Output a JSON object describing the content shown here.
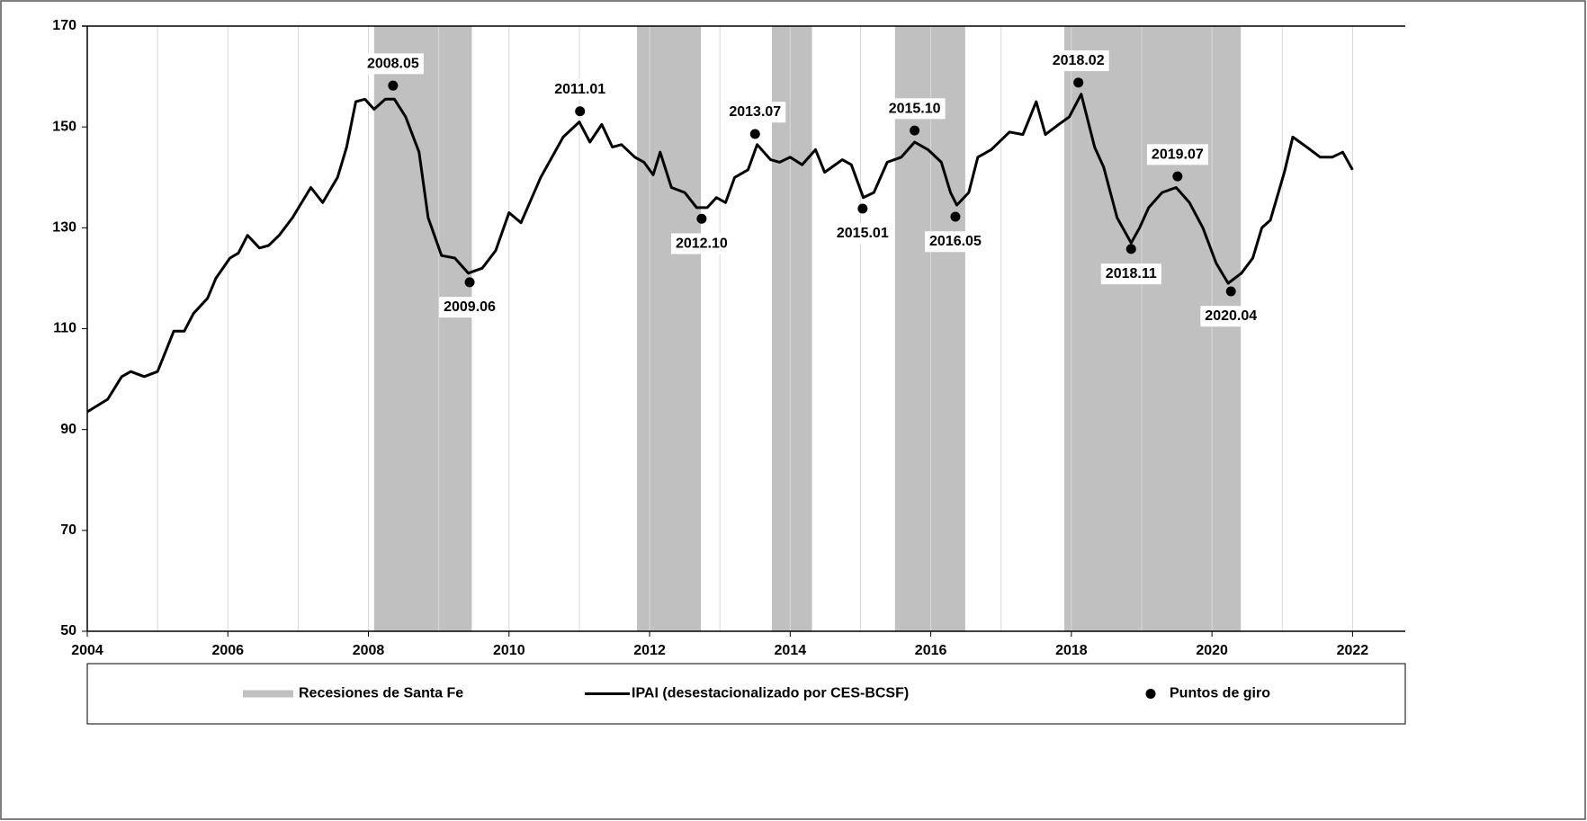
{
  "chart_data": {
    "type": "line",
    "xlim": [
      2004,
      2022.75
    ],
    "ylim": [
      50,
      170
    ],
    "xticks": [
      2004,
      2006,
      2008,
      2010,
      2012,
      2014,
      2016,
      2018,
      2020,
      2022
    ],
    "minor_xticks": [
      2005,
      2007,
      2009,
      2011,
      2013,
      2015,
      2017,
      2019,
      2021
    ],
    "yticks": [
      50,
      70,
      90,
      110,
      130,
      150,
      170
    ],
    "grid": true,
    "legend": "bottom",
    "recessions": {
      "name": "Recesiones de Santa Fe",
      "color": "#c0c0c0",
      "ranges": [
        [
          2008.08,
          2009.47
        ],
        [
          2011.82,
          2012.73
        ],
        [
          2013.74,
          2014.31
        ],
        [
          2015.49,
          2016.49
        ],
        [
          2017.9,
          2020.41
        ]
      ]
    },
    "series": [
      {
        "name": "IPAI (desestacionalizado por CES-BCSF)",
        "color": "#000000",
        "x": [
          2004.0,
          2004.29,
          2004.49,
          2004.62,
          2004.81,
          2005.0,
          2005.13,
          2005.23,
          2005.38,
          2005.51,
          2005.71,
          2005.83,
          2006.03,
          2006.15,
          2006.28,
          2006.45,
          2006.58,
          2006.73,
          2006.92,
          2007.18,
          2007.35,
          2007.56,
          2007.69,
          2007.82,
          2007.95,
          2008.08,
          2008.24,
          2008.37,
          2008.53,
          2008.72,
          2008.85,
          2009.04,
          2009.23,
          2009.42,
          2009.62,
          2009.81,
          2010.0,
          2010.17,
          2010.45,
          2010.77,
          2011.0,
          2011.15,
          2011.32,
          2011.47,
          2011.6,
          2011.79,
          2011.92,
          2012.05,
          2012.15,
          2012.31,
          2012.5,
          2012.67,
          2012.82,
          2012.95,
          2013.08,
          2013.21,
          2013.4,
          2013.53,
          2013.72,
          2013.85,
          2014.0,
          2014.17,
          2014.36,
          2014.49,
          2014.74,
          2014.87,
          2015.04,
          2015.19,
          2015.38,
          2015.58,
          2015.77,
          2015.96,
          2016.15,
          2016.28,
          2016.37,
          2016.54,
          2016.67,
          2016.86,
          2017.12,
          2017.31,
          2017.5,
          2017.63,
          2017.82,
          2017.97,
          2018.14,
          2018.33,
          2018.46,
          2018.65,
          2018.85,
          2018.97,
          2019.1,
          2019.29,
          2019.49,
          2019.68,
          2019.87,
          2020.06,
          2020.23,
          2020.42,
          2020.58,
          2020.71,
          2020.83,
          2021.03,
          2021.15,
          2021.35,
          2021.54,
          2021.71,
          2021.86,
          2022.0
        ],
        "values": [
          93.5,
          96,
          100.5,
          101.5,
          100.5,
          101.5,
          106,
          109.5,
          109.5,
          113,
          116,
          120,
          124,
          125,
          128.5,
          126,
          126.5,
          128.5,
          132,
          138,
          135,
          140,
          146,
          155,
          155.5,
          153.5,
          155.5,
          155.5,
          152,
          145,
          132,
          124.5,
          124,
          121,
          122,
          125.5,
          133,
          131,
          140,
          148,
          151,
          147,
          150.5,
          146,
          146.5,
          144,
          143,
          140.5,
          145,
          138,
          137,
          134,
          134,
          136,
          135,
          140,
          141.5,
          146.5,
          143.5,
          143,
          144,
          142.5,
          145.5,
          141,
          143.5,
          142.5,
          136,
          137,
          143,
          144,
          147,
          145.5,
          143,
          137,
          134.5,
          137,
          144,
          145.5,
          149,
          148.5,
          155,
          148.5,
          150.5,
          152,
          156.5,
          146,
          142,
          132,
          127,
          130,
          134,
          137,
          138,
          135,
          130,
          123,
          119,
          121,
          124,
          130,
          131.5,
          141,
          148,
          146,
          144,
          144,
          145,
          141.5
        ]
      }
    ],
    "turning_points": {
      "name": "Puntos de giro",
      "color": "#000000",
      "labels": [
        "2008.05",
        "2009.06",
        "2011.01",
        "2012.10",
        "2013.07",
        "2015.01",
        "2015.10",
        "2016.05",
        "2018.02",
        "2018.11",
        "2019.07",
        "2020.04"
      ],
      "x": [
        2008.35,
        2009.44,
        2011.01,
        2012.74,
        2013.5,
        2015.03,
        2015.77,
        2016.35,
        2018.1,
        2018.85,
        2019.51,
        2020.27
      ],
      "values": [
        158.2,
        119.2,
        153.1,
        131.8,
        148.6,
        133.8,
        149.3,
        132.2,
        158.8,
        125.8,
        140.2,
        117.4
      ]
    }
  }
}
